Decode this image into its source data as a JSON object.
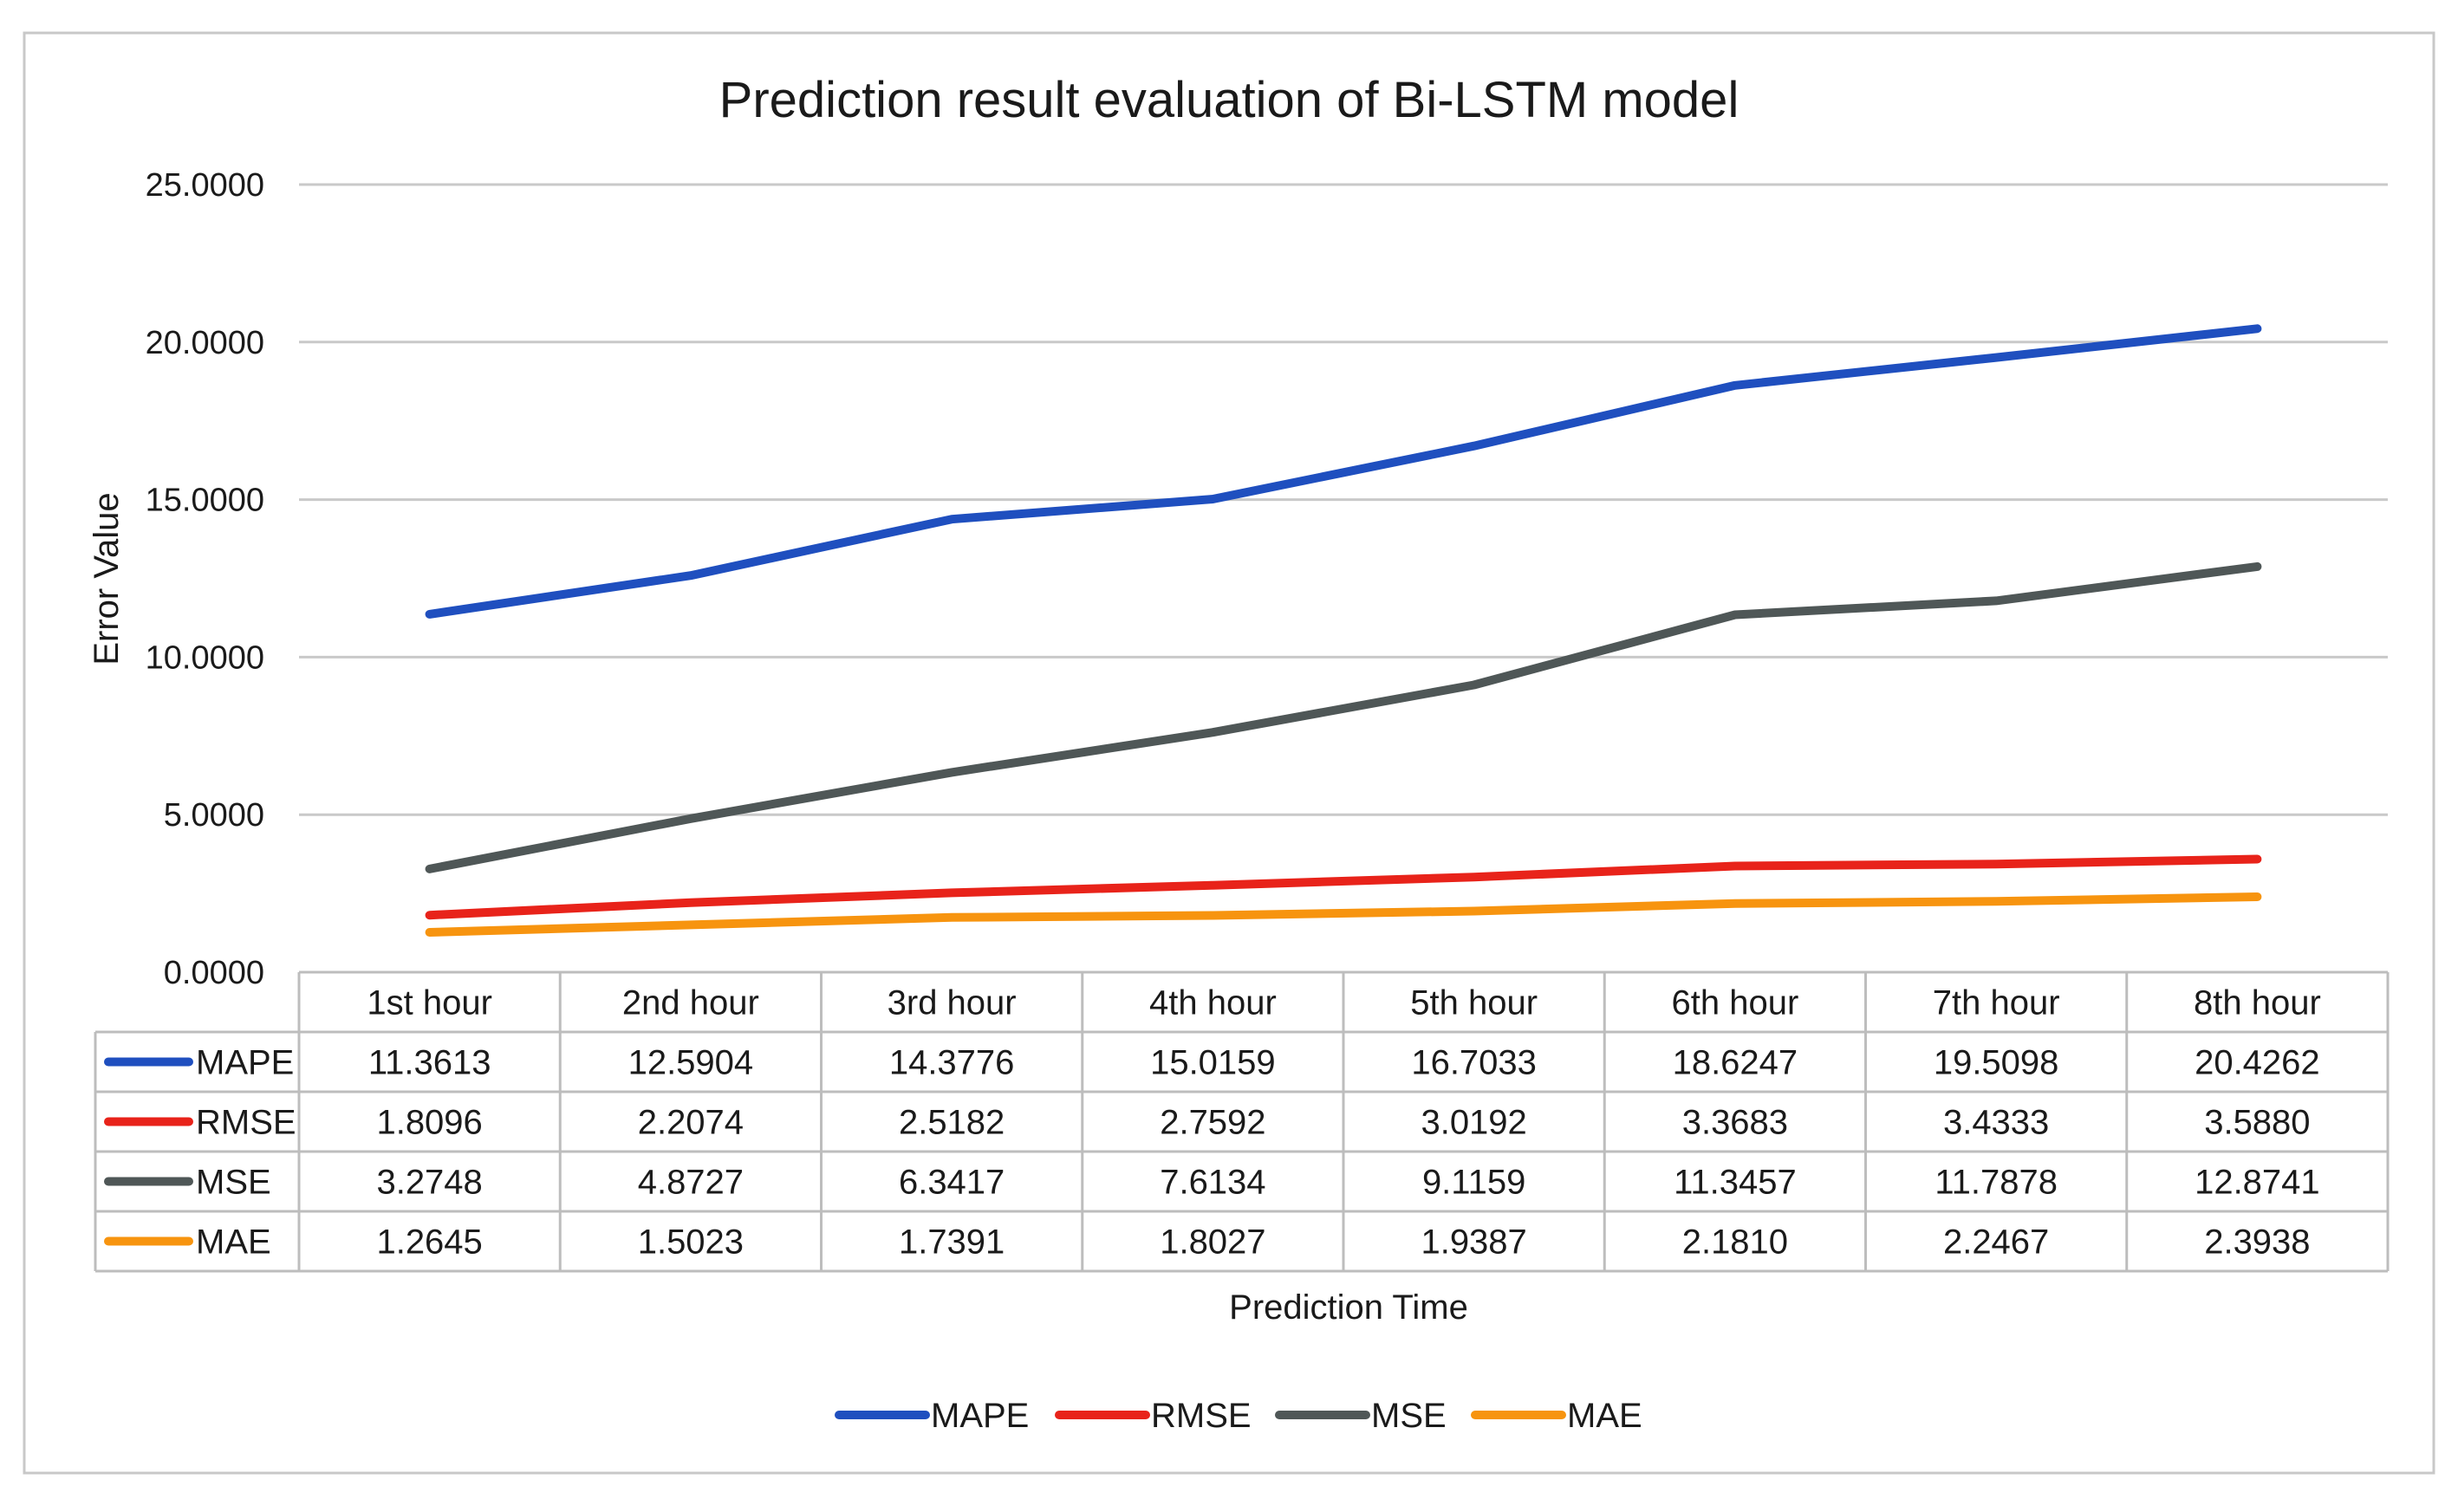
{
  "chart_data": {
    "type": "line",
    "title": "Prediction result evaluation of Bi-LSTM model",
    "xlabel": "Prediction Time",
    "ylabel": "Error Value",
    "ylim": [
      0,
      25
    ],
    "yticks": [
      "0.0000",
      "5.0000",
      "10.0000",
      "15.0000",
      "20.0000",
      "25.0000"
    ],
    "ytick_values": [
      0,
      5,
      10,
      15,
      20,
      25
    ],
    "grid": true,
    "legend_position": "bottom",
    "categories": [
      "1st hour",
      "2nd hour",
      "3rd hour",
      "4th hour",
      "5th hour",
      "6th hour",
      "7th hour",
      "8th hour"
    ],
    "series": [
      {
        "name": "MAPE",
        "color": "#1f4fbf",
        "values": [
          11.3613,
          12.5904,
          14.3776,
          15.0159,
          16.7033,
          18.6247,
          19.5098,
          20.4262
        ],
        "labels": [
          "11.3613",
          "12.5904",
          "14.3776",
          "15.0159",
          "16.7033",
          "18.6247",
          "19.5098",
          "20.4262"
        ]
      },
      {
        "name": "RMSE",
        "color": "#e8231a",
        "values": [
          1.8096,
          2.2074,
          2.5182,
          2.7592,
          3.0192,
          3.3683,
          3.4333,
          3.588
        ],
        "labels": [
          "1.8096",
          "2.2074",
          "2.5182",
          "2.7592",
          "3.0192",
          "3.3683",
          "3.4333",
          "3.5880"
        ]
      },
      {
        "name": "MSE",
        "color": "#4f5757",
        "values": [
          3.2748,
          4.8727,
          6.3417,
          7.6134,
          9.1159,
          11.3457,
          11.7878,
          12.8741
        ],
        "labels": [
          "3.2748",
          "4.8727",
          "6.3417",
          "7.6134",
          "9.1159",
          "11.3457",
          "11.7878",
          "12.8741"
        ]
      },
      {
        "name": "MAE",
        "color": "#f7940f",
        "values": [
          1.2645,
          1.5023,
          1.7391,
          1.8027,
          1.9387,
          2.181,
          2.2467,
          2.3938
        ],
        "labels": [
          "1.2645",
          "1.5023",
          "1.7391",
          "1.8027",
          "1.9387",
          "2.1810",
          "2.2467",
          "2.3938"
        ]
      }
    ]
  }
}
